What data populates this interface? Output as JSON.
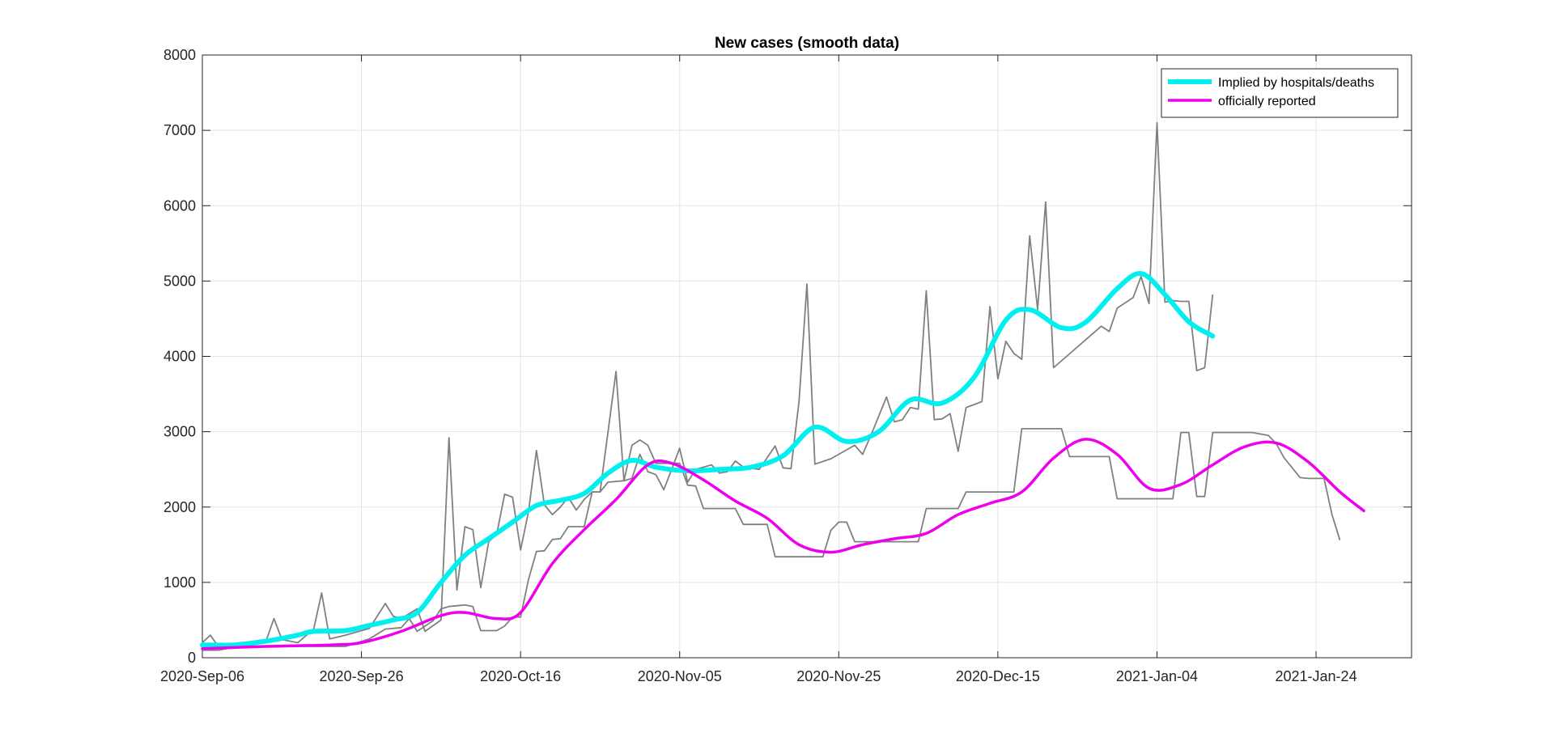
{
  "chart_data": {
    "type": "line",
    "title": "New cases (smooth data)",
    "xlabel": "",
    "ylabel": "",
    "x_axis": {
      "type": "date",
      "min": "2020-09-06",
      "max": "2021-02-05",
      "ticks": [
        "2020-09-06",
        "2020-09-26",
        "2020-10-16",
        "2020-11-05",
        "2020-11-25",
        "2020-12-15",
        "2021-01-04",
        "2021-01-24"
      ],
      "tick_labels": [
        "2020-Sep-06",
        "2020-Sep-26",
        "2020-Oct-16",
        "2020-Nov-05",
        "2020-Nov-25",
        "2020-Dec-15",
        "2021-Jan-04",
        "2021-Jan-24"
      ]
    },
    "y_axis": {
      "min": 0,
      "max": 8000,
      "ticks": [
        0,
        1000,
        2000,
        3000,
        4000,
        5000,
        6000,
        7000,
        8000
      ],
      "tick_labels": [
        "0",
        "1000",
        "2000",
        "3000",
        "4000",
        "5000",
        "6000",
        "7000",
        "8000"
      ]
    },
    "grid": true,
    "legend": {
      "placement": "top-right"
    },
    "series": [
      {
        "name": "Implied by hospitals/deaths",
        "color": "#00F0F0",
        "style": "smooth",
        "points": [
          [
            "2020-09-06",
            170
          ],
          [
            "2020-09-10",
            170
          ],
          [
            "2020-09-14",
            220
          ],
          [
            "2020-09-18",
            300
          ],
          [
            "2020-09-20",
            350
          ],
          [
            "2020-09-24",
            360
          ],
          [
            "2020-09-27",
            430
          ],
          [
            "2020-09-30",
            500
          ],
          [
            "2020-10-03",
            600
          ],
          [
            "2020-10-06",
            1000
          ],
          [
            "2020-10-09",
            1360
          ],
          [
            "2020-10-12",
            1580
          ],
          [
            "2020-10-15",
            1800
          ],
          [
            "2020-10-18",
            2020
          ],
          [
            "2020-10-21",
            2090
          ],
          [
            "2020-10-24",
            2180
          ],
          [
            "2020-10-27",
            2450
          ],
          [
            "2020-10-30",
            2620
          ],
          [
            "2020-11-02",
            2530
          ],
          [
            "2020-11-06",
            2480
          ],
          [
            "2020-11-10",
            2500
          ],
          [
            "2020-11-14",
            2530
          ],
          [
            "2020-11-18",
            2680
          ],
          [
            "2020-11-22",
            3060
          ],
          [
            "2020-11-26",
            2870
          ],
          [
            "2020-11-30",
            3000
          ],
          [
            "2020-12-04",
            3420
          ],
          [
            "2020-12-08",
            3380
          ],
          [
            "2020-12-12",
            3720
          ],
          [
            "2020-12-16",
            4480
          ],
          [
            "2020-12-19",
            4620
          ],
          [
            "2020-12-23",
            4380
          ],
          [
            "2020-12-26",
            4450
          ],
          [
            "2020-12-30",
            4900
          ],
          [
            "2021-01-02",
            5100
          ],
          [
            "2021-01-05",
            4820
          ],
          [
            "2021-01-08",
            4460
          ],
          [
            "2021-01-11",
            4270
          ]
        ]
      },
      {
        "name": "officially reported",
        "color": "#EE00EE",
        "style": "smooth",
        "points": [
          [
            "2020-09-06",
            120
          ],
          [
            "2020-09-14",
            150
          ],
          [
            "2020-09-22",
            170
          ],
          [
            "2020-09-26",
            200
          ],
          [
            "2020-10-01",
            350
          ],
          [
            "2020-10-06",
            560
          ],
          [
            "2020-10-09",
            600
          ],
          [
            "2020-10-13",
            520
          ],
          [
            "2020-10-16",
            600
          ],
          [
            "2020-10-20",
            1250
          ],
          [
            "2020-10-24",
            1700
          ],
          [
            "2020-10-28",
            2100
          ],
          [
            "2020-11-01",
            2560
          ],
          [
            "2020-11-04",
            2580
          ],
          [
            "2020-11-08",
            2360
          ],
          [
            "2020-11-12",
            2080
          ],
          [
            "2020-11-16",
            1850
          ],
          [
            "2020-11-20",
            1500
          ],
          [
            "2020-11-24",
            1400
          ],
          [
            "2020-11-28",
            1500
          ],
          [
            "2020-12-02",
            1580
          ],
          [
            "2020-12-06",
            1650
          ],
          [
            "2020-12-10",
            1900
          ],
          [
            "2020-12-14",
            2050
          ],
          [
            "2020-12-18",
            2200
          ],
          [
            "2020-12-22",
            2650
          ],
          [
            "2020-12-26",
            2900
          ],
          [
            "2020-12-30",
            2700
          ],
          [
            "2021-01-03",
            2250
          ],
          [
            "2021-01-07",
            2300
          ],
          [
            "2021-01-11",
            2560
          ],
          [
            "2021-01-15",
            2800
          ],
          [
            "2021-01-19",
            2850
          ],
          [
            "2021-01-23",
            2600
          ],
          [
            "2021-01-27",
            2200
          ],
          [
            "2021-01-30",
            1950
          ]
        ]
      },
      {
        "name": "",
        "color": "#808080",
        "style": "raw",
        "points": [
          [
            "2020-09-06",
            200
          ],
          [
            "2020-09-07",
            300
          ],
          [
            "2020-09-08",
            150
          ],
          [
            "2020-09-10",
            140
          ],
          [
            "2020-09-14",
            220
          ],
          [
            "2020-09-15",
            520
          ],
          [
            "2020-09-16",
            240
          ],
          [
            "2020-09-18",
            200
          ],
          [
            "2020-09-20",
            380
          ],
          [
            "2020-09-21",
            860
          ],
          [
            "2020-09-22",
            250
          ],
          [
            "2020-09-24",
            300
          ],
          [
            "2020-09-27",
            390
          ],
          [
            "2020-09-29",
            720
          ],
          [
            "2020-09-30",
            550
          ],
          [
            "2020-10-01",
            520
          ],
          [
            "2020-10-03",
            650
          ],
          [
            "2020-10-04",
            350
          ],
          [
            "2020-10-06",
            500
          ],
          [
            "2020-10-07",
            2920
          ],
          [
            "2020-10-08",
            900
          ],
          [
            "2020-10-09",
            1740
          ],
          [
            "2020-10-10",
            1700
          ],
          [
            "2020-10-11",
            930
          ],
          [
            "2020-10-12",
            1540
          ],
          [
            "2020-10-13",
            1640
          ],
          [
            "2020-10-14",
            2170
          ],
          [
            "2020-10-15",
            2130
          ],
          [
            "2020-10-16",
            1430
          ],
          [
            "2020-10-17",
            1940
          ],
          [
            "2020-10-18",
            2750
          ],
          [
            "2020-10-19",
            2030
          ],
          [
            "2020-10-20",
            1900
          ],
          [
            "2020-10-21",
            2000
          ],
          [
            "2020-10-22",
            2130
          ],
          [
            "2020-10-23",
            1960
          ],
          [
            "2020-10-24",
            2100
          ],
          [
            "2020-10-25",
            2200
          ],
          [
            "2020-10-26",
            2200
          ],
          [
            "2020-10-28",
            3800
          ],
          [
            "2020-10-29",
            2350
          ],
          [
            "2020-10-30",
            2380
          ],
          [
            "2020-10-31",
            2700
          ],
          [
            "2020-11-01",
            2470
          ],
          [
            "2020-11-02",
            2430
          ],
          [
            "2020-11-03",
            2230
          ],
          [
            "2020-11-04",
            2500
          ],
          [
            "2020-11-05",
            2780
          ],
          [
            "2020-11-06",
            2330
          ],
          [
            "2020-11-07",
            2500
          ],
          [
            "2020-11-09",
            2560
          ],
          [
            "2020-11-10",
            2450
          ],
          [
            "2020-11-11",
            2470
          ],
          [
            "2020-11-12",
            2610
          ],
          [
            "2020-11-13",
            2530
          ],
          [
            "2020-11-15",
            2500
          ],
          [
            "2020-11-17",
            2810
          ],
          [
            "2020-11-18",
            2520
          ],
          [
            "2020-11-19",
            2510
          ],
          [
            "2020-11-20",
            3400
          ],
          [
            "2020-11-21",
            4960
          ],
          [
            "2020-11-22",
            2570
          ],
          [
            "2020-11-24",
            2640
          ],
          [
            "2020-11-26",
            2760
          ],
          [
            "2020-11-27",
            2820
          ],
          [
            "2020-11-28",
            2700
          ],
          [
            "2020-11-29",
            2940
          ],
          [
            "2020-12-01",
            3460
          ],
          [
            "2020-12-02",
            3130
          ],
          [
            "2020-12-03",
            3160
          ],
          [
            "2020-12-04",
            3320
          ],
          [
            "2020-12-05",
            3300
          ],
          [
            "2020-12-06",
            4870
          ],
          [
            "2020-12-07",
            3160
          ],
          [
            "2020-12-08",
            3170
          ],
          [
            "2020-12-09",
            3240
          ],
          [
            "2020-12-10",
            2740
          ],
          [
            "2020-12-11",
            3320
          ],
          [
            "2020-12-13",
            3400
          ],
          [
            "2020-12-14",
            4660
          ],
          [
            "2020-12-15",
            3700
          ],
          [
            "2020-12-16",
            4200
          ],
          [
            "2020-12-17",
            4040
          ],
          [
            "2020-12-18",
            3960
          ],
          [
            "2020-12-19",
            5600
          ],
          [
            "2020-12-20",
            4620
          ],
          [
            "2020-12-21",
            6050
          ],
          [
            "2020-12-22",
            3850
          ],
          [
            "2020-12-28",
            4400
          ],
          [
            "2020-12-29",
            4330
          ],
          [
            "2020-12-30",
            4640
          ],
          [
            "2021-01-01",
            4780
          ],
          [
            "2021-01-02",
            5060
          ],
          [
            "2021-01-03",
            4700
          ],
          [
            "2021-01-04",
            7100
          ],
          [
            "2021-01-05",
            4720
          ],
          [
            "2021-01-06",
            4740
          ],
          [
            "2021-01-07",
            4730
          ],
          [
            "2021-01-08",
            4730
          ],
          [
            "2021-01-09",
            3810
          ],
          [
            "2021-01-10",
            3850
          ],
          [
            "2021-01-11",
            4820
          ]
        ]
      },
      {
        "name": "",
        "color": "#808080",
        "style": "raw",
        "points": [
          [
            "2020-09-06",
            100
          ],
          [
            "2020-09-08",
            100
          ],
          [
            "2020-09-10",
            140
          ],
          [
            "2020-09-15",
            150
          ],
          [
            "2020-09-20",
            150
          ],
          [
            "2020-09-24",
            150
          ],
          [
            "2020-09-27",
            250
          ],
          [
            "2020-09-29",
            380
          ],
          [
            "2020-10-01",
            400
          ],
          [
            "2020-10-02",
            520
          ],
          [
            "2020-10-03",
            350
          ],
          [
            "2020-10-05",
            490
          ],
          [
            "2020-10-06",
            650
          ],
          [
            "2020-10-07",
            680
          ],
          [
            "2020-10-09",
            700
          ],
          [
            "2020-10-10",
            680
          ],
          [
            "2020-10-11",
            360
          ],
          [
            "2020-10-13",
            360
          ],
          [
            "2020-10-14",
            420
          ],
          [
            "2020-10-15",
            540
          ],
          [
            "2020-10-16",
            540
          ],
          [
            "2020-10-17",
            1040
          ],
          [
            "2020-10-18",
            1410
          ],
          [
            "2020-10-19",
            1420
          ],
          [
            "2020-10-20",
            1570
          ],
          [
            "2020-10-21",
            1580
          ],
          [
            "2020-10-22",
            1740
          ],
          [
            "2020-10-24",
            1740
          ],
          [
            "2020-10-25",
            2200
          ],
          [
            "2020-10-26",
            2200
          ],
          [
            "2020-10-27",
            2330
          ],
          [
            "2020-10-29",
            2350
          ],
          [
            "2020-10-30",
            2820
          ],
          [
            "2020-10-31",
            2890
          ],
          [
            "2020-11-01",
            2820
          ],
          [
            "2020-11-02",
            2580
          ],
          [
            "2020-11-05",
            2580
          ],
          [
            "2020-11-06",
            2290
          ],
          [
            "2020-11-07",
            2280
          ],
          [
            "2020-11-08",
            1980
          ],
          [
            "2020-11-12",
            1980
          ],
          [
            "2020-11-13",
            1770
          ],
          [
            "2020-11-16",
            1770
          ],
          [
            "2020-11-17",
            1340
          ],
          [
            "2020-11-23",
            1340
          ],
          [
            "2020-11-24",
            1690
          ],
          [
            "2020-11-25",
            1800
          ],
          [
            "2020-11-26",
            1800
          ],
          [
            "2020-11-27",
            1540
          ],
          [
            "2020-12-05",
            1540
          ],
          [
            "2020-12-06",
            1980
          ],
          [
            "2020-12-10",
            1980
          ],
          [
            "2020-12-11",
            2200
          ],
          [
            "2020-12-17",
            2200
          ],
          [
            "2020-12-18",
            3040
          ],
          [
            "2020-12-23",
            3040
          ],
          [
            "2020-12-24",
            2670
          ],
          [
            "2020-12-29",
            2670
          ],
          [
            "2020-12-30",
            2110
          ],
          [
            "2021-01-06",
            2110
          ],
          [
            "2021-01-07",
            2990
          ],
          [
            "2021-01-08",
            2990
          ],
          [
            "2021-01-09",
            2140
          ],
          [
            "2021-01-10",
            2140
          ],
          [
            "2021-01-11",
            2990
          ],
          [
            "2021-01-16",
            2990
          ],
          [
            "2021-01-18",
            2950
          ],
          [
            "2021-01-19",
            2840
          ],
          [
            "2021-01-20",
            2650
          ],
          [
            "2021-01-22",
            2390
          ],
          [
            "2021-01-23",
            2380
          ],
          [
            "2021-01-25",
            2380
          ],
          [
            "2021-01-26",
            1900
          ],
          [
            "2021-01-27",
            1560
          ]
        ]
      }
    ]
  }
}
